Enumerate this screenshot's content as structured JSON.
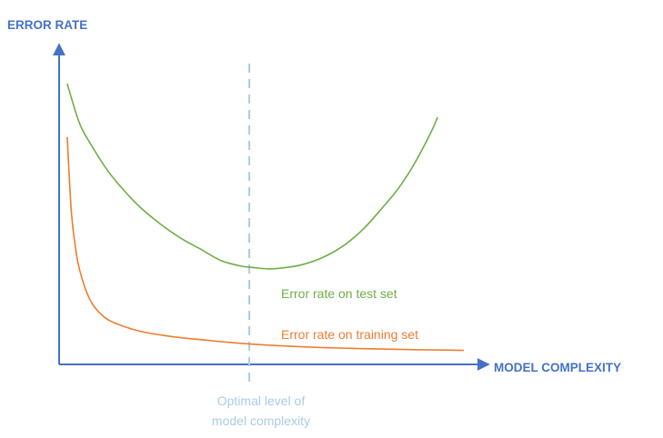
{
  "chart_data": {
    "type": "line",
    "title": "",
    "xlabel": "MODEL COMPLEXITY",
    "ylabel": "ERROR RATE",
    "xlim": [
      0,
      100
    ],
    "ylim": [
      0,
      100
    ],
    "grid": false,
    "legend": "none",
    "series": [
      {
        "name": "Error rate on test set",
        "color": "#70AD47",
        "x": [
          2,
          5,
          8,
          12,
          16,
          20,
          25,
          30,
          35,
          40,
          45,
          48,
          52,
          56,
          60,
          65,
          70,
          75,
          80,
          84,
          88,
          92,
          93.5
        ],
        "y": [
          100,
          86,
          78,
          69,
          62,
          56,
          50,
          45,
          41,
          37,
          35,
          34.5,
          34,
          34.5,
          35.5,
          38,
          42,
          48,
          56,
          63,
          72,
          83,
          88
        ]
      },
      {
        "name": "Error rate on training set",
        "color": "#ED7D31",
        "x": [
          2,
          3,
          4,
          5,
          7,
          9,
          12,
          16,
          20,
          25,
          30,
          35,
          40,
          48,
          55,
          65,
          75,
          85,
          95,
          100
        ],
        "y": [
          81,
          55,
          42,
          34,
          25,
          20,
          16,
          13.5,
          11.8,
          10.5,
          9.5,
          8.8,
          8.1,
          7.2,
          6.6,
          6,
          5.6,
          5.3,
          5.1,
          5
        ]
      }
    ],
    "annotations": {
      "optimal_line": {
        "x": 47,
        "color": "#A9CCE3"
      },
      "optimal_label_line1": "Optimal level of",
      "optimal_label_line2": "model complexity"
    },
    "axis_color": "#4472C4"
  }
}
